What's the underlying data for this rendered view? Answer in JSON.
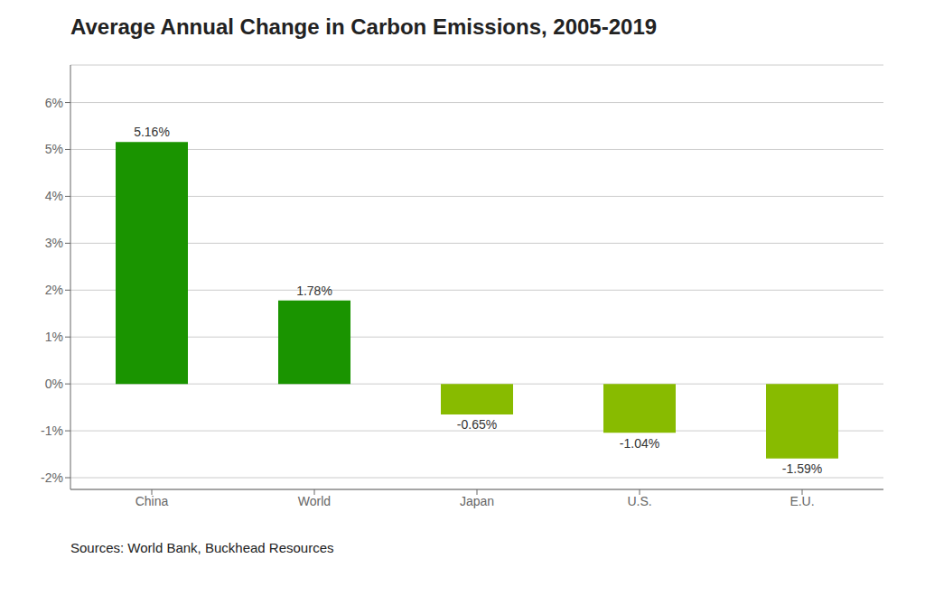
{
  "chart_data": {
    "type": "bar",
    "title": "Average Annual Change in Carbon Emissions, 2005-2019",
    "categories": [
      "China",
      "World",
      "Japan",
      "U.S.",
      "E.U."
    ],
    "values": [
      5.16,
      1.78,
      -0.65,
      -1.04,
      -1.59
    ],
    "value_labels": [
      "5.16%",
      "1.78%",
      "-0.65%",
      "-1.04%",
      "-1.59%"
    ],
    "colors": [
      "#1a9400",
      "#1a9400",
      "#88bb00",
      "#88bb00",
      "#88bb00"
    ],
    "ylim": [
      -2.25,
      6.8
    ],
    "yticks": [
      {
        "value": -2,
        "label": "-2%"
      },
      {
        "value": -1,
        "label": "-1%"
      },
      {
        "value": 0,
        "label": "0%"
      },
      {
        "value": 1,
        "label": "1%"
      },
      {
        "value": 2,
        "label": "2%"
      },
      {
        "value": 3,
        "label": "3%"
      },
      {
        "value": 4,
        "label": "4%"
      },
      {
        "value": 5,
        "label": "5%"
      },
      {
        "value": 6,
        "label": "6%"
      }
    ],
    "grid": true,
    "data_labels": true,
    "annotations": [
      "Sources: World Bank, Buckhead Resources"
    ]
  }
}
